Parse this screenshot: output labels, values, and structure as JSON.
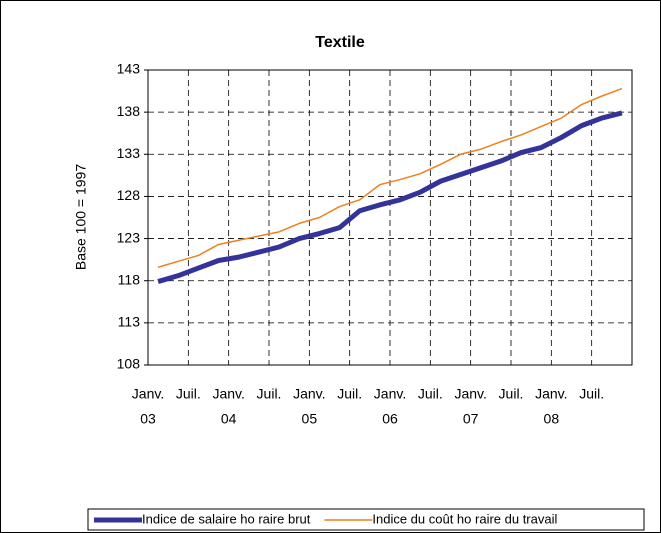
{
  "chart_data": {
    "type": "line",
    "title": "Textile",
    "y_label": "Base 100 = 1997",
    "categories": [
      "Janv.",
      null,
      "Juil.",
      null,
      "Janv.",
      null,
      "Juil.",
      null,
      "Janv.",
      null,
      "Juil.",
      null,
      "Janv.",
      null,
      "Juil.",
      null,
      "Janv.",
      null,
      "Juil.",
      null,
      "Janv.",
      null,
      "Juil.",
      null
    ],
    "x_group_labels": [
      "03",
      "04",
      "05",
      "06",
      "07",
      "08"
    ],
    "series": [
      {
        "name": "Indice de salaire ho raire brut",
        "color": "#333399",
        "values": [
          117.9,
          118.6,
          119.5,
          120.4,
          120.8,
          121.4,
          122.0,
          123.0,
          123.6,
          124.3,
          126.3,
          127.0,
          127.6,
          128.5,
          129.8,
          130.6,
          131.4,
          132.2,
          133.2,
          133.8,
          135.0,
          136.4,
          137.3,
          137.9
        ]
      },
      {
        "name": "Indice du coût ho raire du travail",
        "color": "#f07f1e",
        "values": [
          119.6,
          120.3,
          121.0,
          122.3,
          122.8,
          123.3,
          123.8,
          124.8,
          125.5,
          126.8,
          127.6,
          129.4,
          130.0,
          130.7,
          131.8,
          133.0,
          133.6,
          134.5,
          135.3,
          136.3,
          137.3,
          138.9,
          139.9,
          140.8
        ]
      }
    ],
    "ylim": [
      108,
      143
    ],
    "yticks": [
      108,
      113,
      118,
      123,
      128,
      133,
      138,
      143
    ],
    "grid": true,
    "legend": "bottom"
  }
}
